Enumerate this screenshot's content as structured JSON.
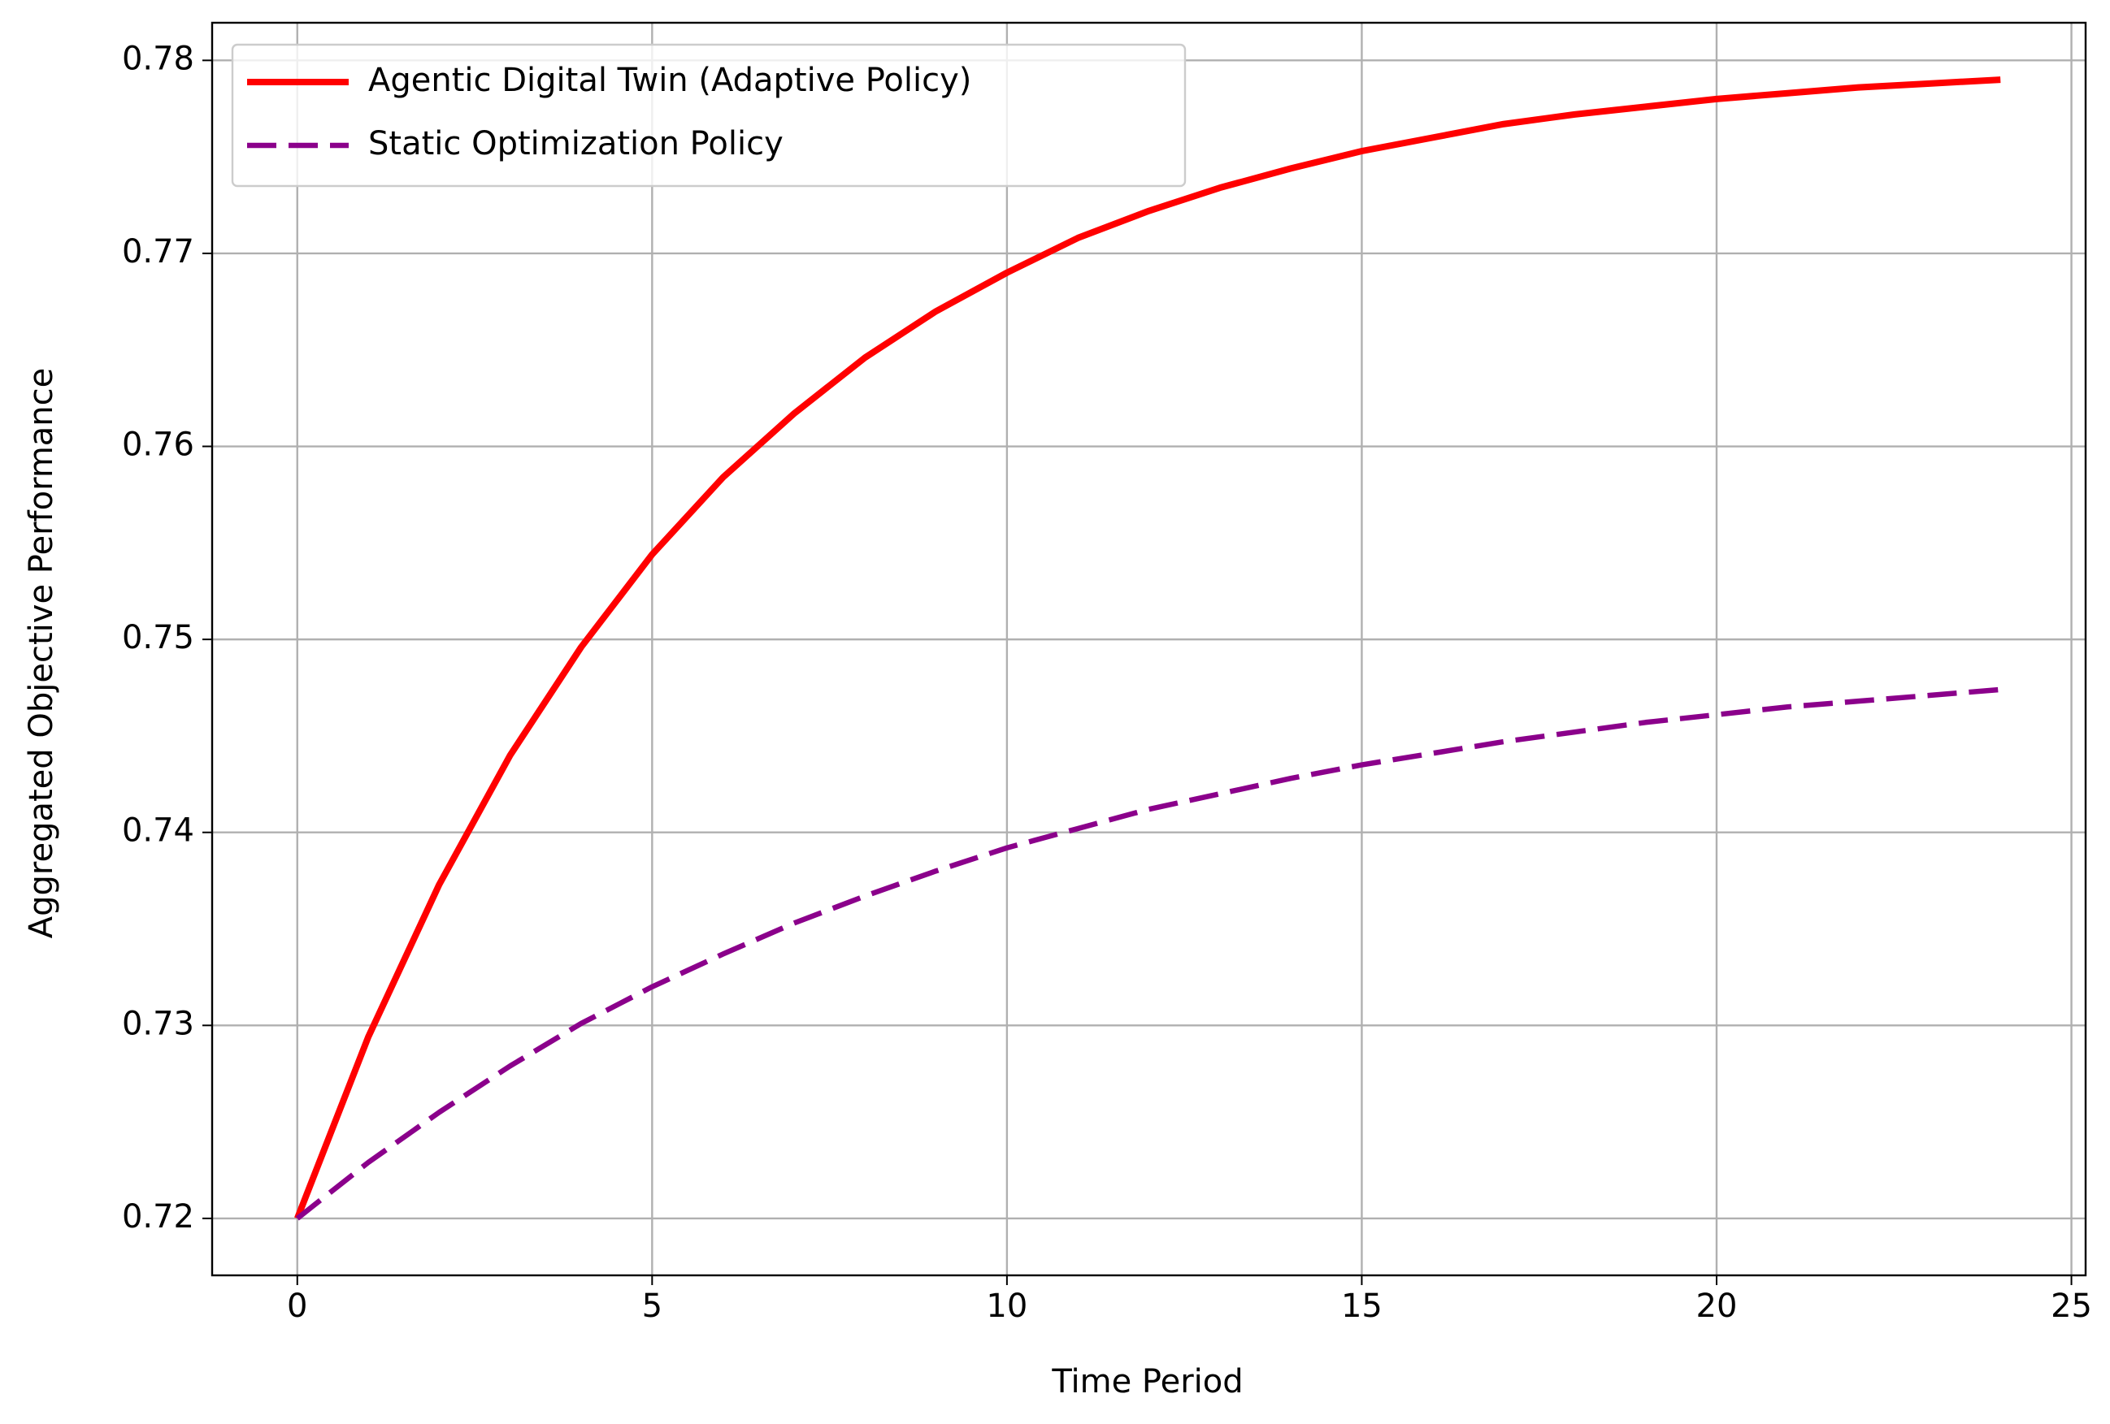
{
  "chart_data": {
    "type": "line",
    "x_label": "Time Period",
    "y_label": "Aggregated Objective Performance",
    "x": [
      0,
      1,
      2,
      3,
      4,
      5,
      6,
      7,
      8,
      9,
      10,
      11,
      12,
      13,
      14,
      15,
      16,
      17,
      18,
      19,
      20,
      21,
      22,
      23,
      24
    ],
    "series": [
      {
        "name": "Agentic Digital Twin (Adaptive Policy)",
        "color": "#ff0000",
        "dash": false,
        "values": [
          0.72,
          0.7294,
          0.7373,
          0.744,
          0.7496,
          0.7544,
          0.7584,
          0.7617,
          0.7646,
          0.767,
          0.769,
          0.7708,
          0.7722,
          0.7734,
          0.7744,
          0.7753,
          0.776,
          0.7767,
          0.7772,
          0.7776,
          0.778,
          0.7783,
          0.7786,
          0.7788,
          0.779
        ]
      },
      {
        "name": "Static Optimization Policy",
        "color": "#8b008b",
        "dash": true,
        "values": [
          0.72,
          0.7229,
          0.7255,
          0.7279,
          0.7301,
          0.732,
          0.7337,
          0.7353,
          0.7367,
          0.738,
          0.7392,
          0.7402,
          0.7412,
          0.742,
          0.7428,
          0.7435,
          0.7441,
          0.7447,
          0.7452,
          0.7457,
          0.7461,
          0.7465,
          0.7468,
          0.7471,
          0.7474
        ]
      }
    ],
    "xlim": [
      -1.2,
      25.2
    ],
    "xticks": [
      0,
      5,
      10,
      15,
      20,
      25
    ],
    "ylim": [
      0.71705,
      0.78195
    ],
    "yticks": [
      0.72,
      0.73,
      0.74,
      0.75,
      0.76,
      0.77,
      0.78
    ],
    "grid": true,
    "legend_position": "upper left"
  }
}
